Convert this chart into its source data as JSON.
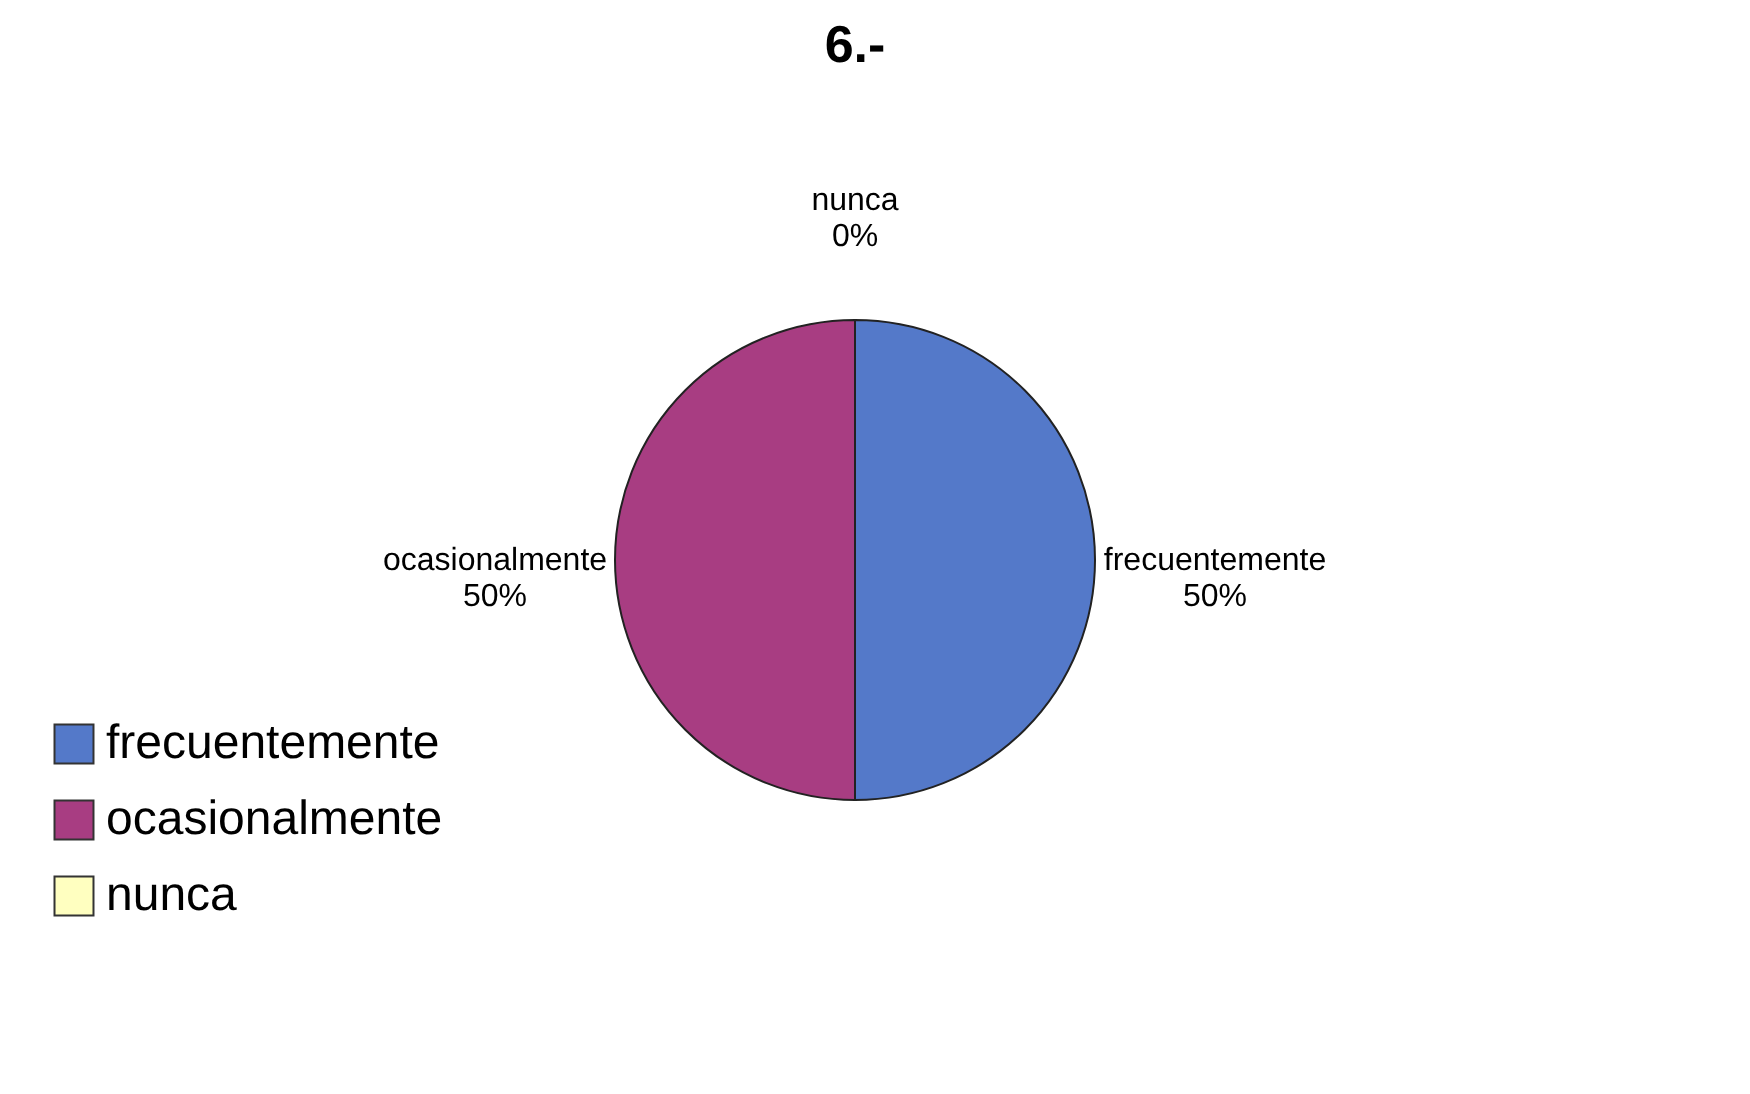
{
  "chart_data": {
    "type": "pie",
    "title": "6.-",
    "categories": [
      "frecuentemente",
      "ocasionalmente",
      "nunca"
    ],
    "values": [
      50,
      50,
      0
    ],
    "value_labels": [
      "50%",
      "50%",
      "0%"
    ],
    "colors": [
      "#5479c9",
      "#a83d82",
      "#ffffc0"
    ],
    "legend": "bottom left"
  }
}
